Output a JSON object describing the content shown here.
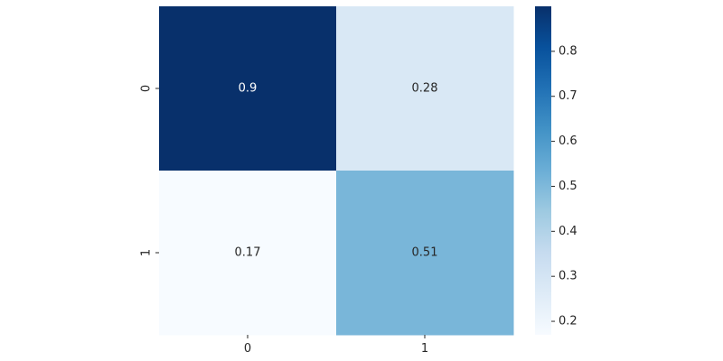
{
  "chart_data": {
    "type": "heatmap",
    "title": "",
    "xlabel": "",
    "ylabel": "",
    "x_categories": [
      "0",
      "1"
    ],
    "y_categories": [
      "0",
      "1"
    ],
    "values": [
      [
        0.9,
        0.28
      ],
      [
        0.17,
        0.51
      ]
    ],
    "cell_labels": [
      [
        "0.9",
        "0.28"
      ],
      [
        "0.17",
        "0.51"
      ]
    ],
    "colormap": "Blues",
    "colormap_stops": [
      "#f7fbff",
      "#deebf7",
      "#c6dbef",
      "#9ecae1",
      "#6baed6",
      "#4292c6",
      "#2171b5",
      "#08519c",
      "#08306b"
    ],
    "value_range": [
      0.17,
      0.9
    ],
    "colorbar": {
      "ticks": [
        0.2,
        0.3,
        0.4,
        0.5,
        0.6,
        0.7,
        0.8
      ],
      "tick_labels": [
        "0.2",
        "0.3",
        "0.4",
        "0.5",
        "0.6",
        "0.7",
        "0.8"
      ],
      "placement": "right"
    },
    "grid": false
  }
}
